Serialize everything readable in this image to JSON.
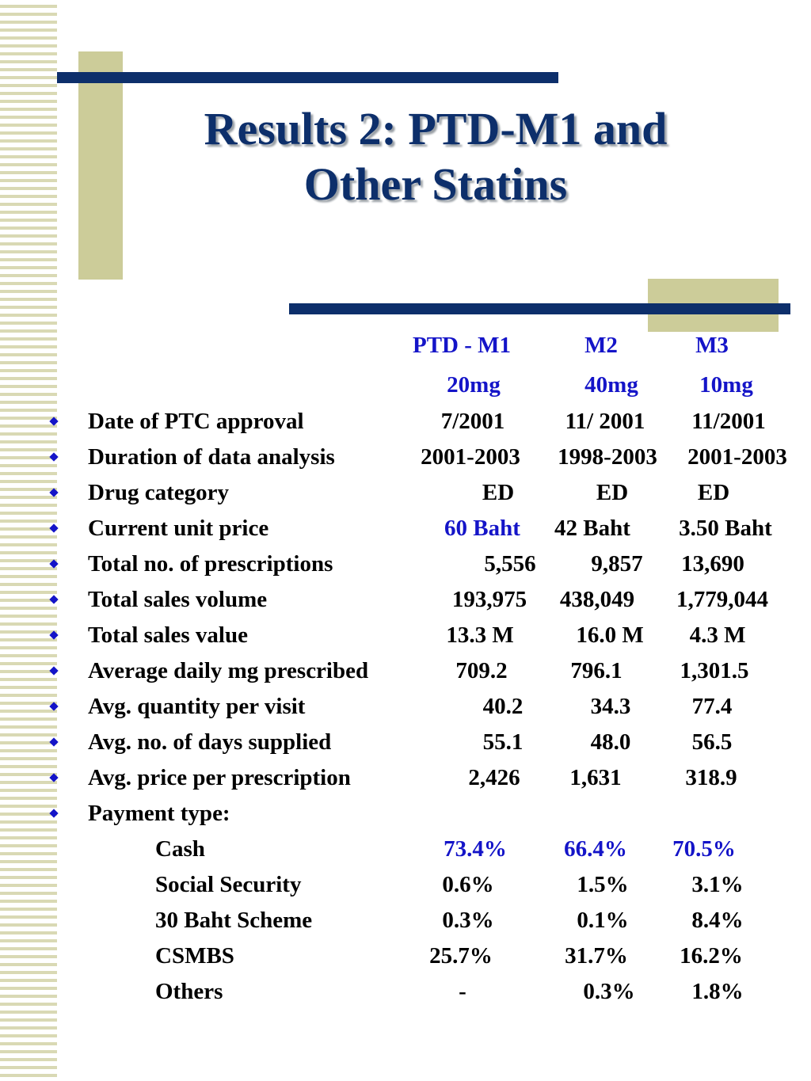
{
  "title": {
    "line1": "Results 2: PTD-M1 and",
    "line2": "Other Statins"
  },
  "columns": {
    "headers": [
      "PTD - M1",
      "M2",
      "M3"
    ],
    "doses": [
      "20mg",
      "40mg",
      "10mg"
    ]
  },
  "rows": [
    {
      "label": "Date of PTC approval",
      "values": [
        "7/2001",
        "11/ 2001",
        "11/2001"
      ]
    },
    {
      "label": "Duration of data analysis",
      "values": [
        "2001-2003",
        "1998-2003",
        "2001-2003"
      ]
    },
    {
      "label": "Drug category",
      "values": [
        "ED",
        "ED",
        "ED"
      ]
    },
    {
      "label": "Current unit price",
      "values": [
        "60 Baht",
        "42 Baht",
        "3.50 Baht"
      ]
    },
    {
      "label": "Total no. of prescriptions",
      "values": [
        "5,556",
        "9,857",
        "13,690"
      ]
    },
    {
      "label": "Total sales volume",
      "values": [
        "193,975",
        "438,049",
        "1,779,044"
      ]
    },
    {
      "label": "Total sales value",
      "values": [
        "13.3 M",
        "16.0 M",
        "4.3 M"
      ]
    },
    {
      "label": "Average daily mg prescribed",
      "values": [
        "709.2",
        "796.1",
        "1,301.5"
      ]
    },
    {
      "label": "Avg. quantity per visit",
      "values": [
        "40.2",
        "34.3",
        "77.4"
      ]
    },
    {
      "label": "Avg. no. of days supplied",
      "values": [
        "55.1",
        "48.0",
        "56.5"
      ]
    },
    {
      "label": "Avg. price per prescription",
      "values": [
        "2,426",
        "1,631",
        "318.9"
      ]
    },
    {
      "label": "Payment type:",
      "values": []
    }
  ],
  "payment_rows": [
    {
      "label": "Cash",
      "values": [
        "73.4%",
        "66.4%",
        "70.5%"
      ]
    },
    {
      "label": "Social Security",
      "values": [
        "0.6%",
        "1.5%",
        "3.1%"
      ]
    },
    {
      "label": "30 Baht Scheme",
      "values": [
        "0.3%",
        "0.1%",
        "8.4%"
      ]
    },
    {
      "label": "CSMBS",
      "values": [
        "25.7%",
        "31.7%",
        "16.2%"
      ]
    },
    {
      "label": "Others",
      "values": [
        "-",
        "0.3%",
        "1.8%"
      ]
    }
  ],
  "colors": {
    "navy": "#0d2f6b",
    "khaki": "#cccc99",
    "accent_blue": "#1414c8"
  }
}
